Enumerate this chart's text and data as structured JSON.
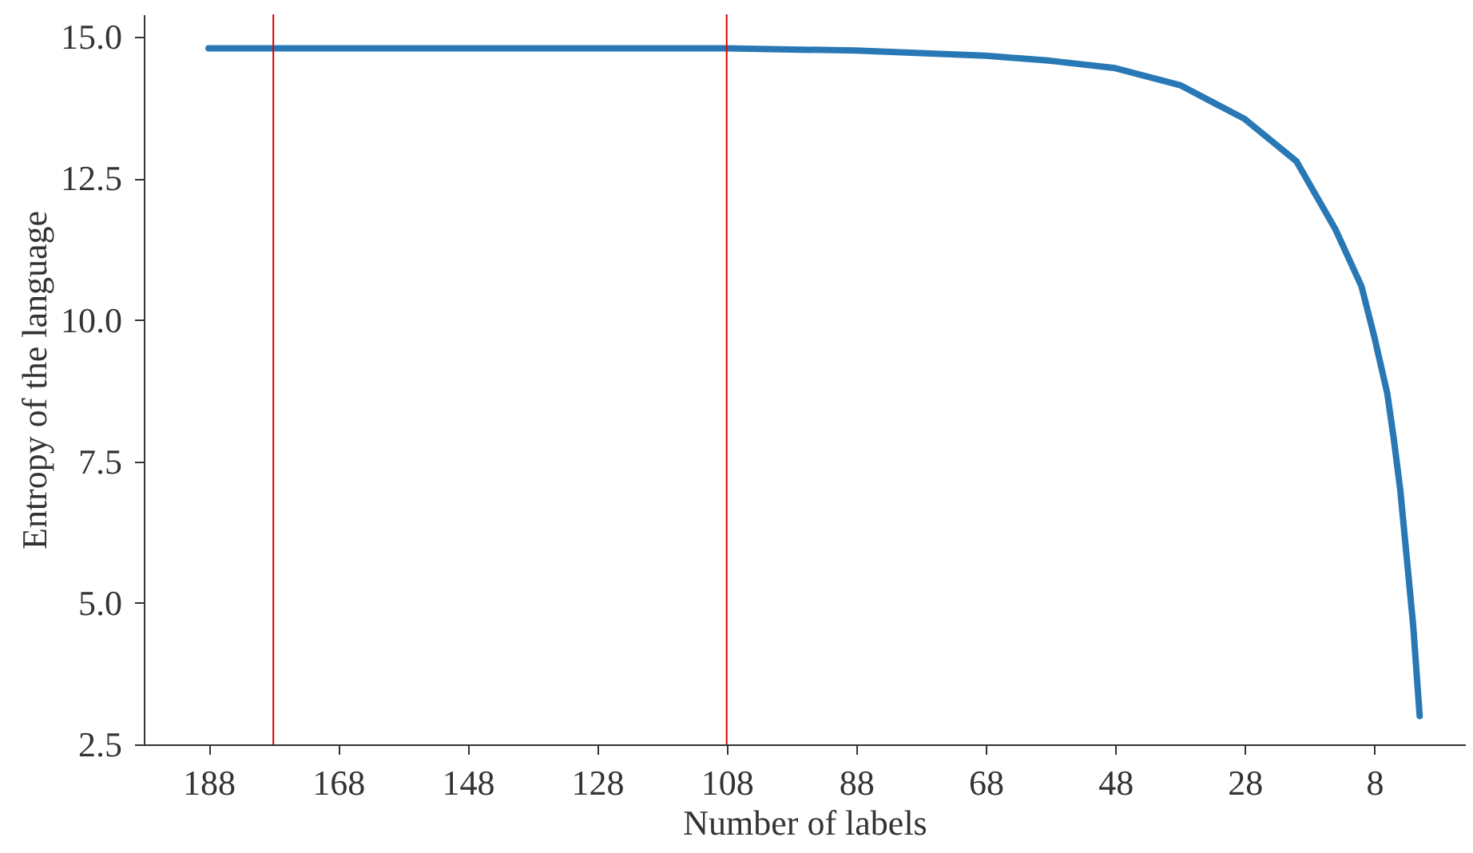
{
  "chart_data": {
    "type": "line",
    "xlabel": "Number of labels",
    "ylabel": "Entropy of the language",
    "x": [
      188,
      168,
      148,
      128,
      108,
      88,
      68,
      58,
      48,
      38,
      28,
      20,
      14,
      10,
      8,
      6,
      5,
      4,
      3,
      2,
      1
    ],
    "series": [
      {
        "color": "#2878b5",
        "values": [
          14.8,
          14.8,
          14.8,
          14.8,
          14.8,
          14.76,
          14.67,
          14.58,
          14.45,
          14.15,
          13.55,
          12.8,
          11.6,
          10.6,
          9.7,
          8.7,
          7.9,
          7.0,
          5.8,
          4.6,
          3.0
        ]
      }
    ],
    "xlim": [
      198,
      -6
    ],
    "xticks": [
      188,
      168,
      148,
      128,
      108,
      88,
      68,
      48,
      28,
      8
    ],
    "ylim": [
      2.5,
      15.4
    ],
    "yticks": [
      2.5,
      {
        "value": 5,
        "label": "5.0"
      },
      7.5,
      {
        "value": 10,
        "label": "10.0"
      },
      12.5,
      {
        "value": 15,
        "label": "15.0"
      }
    ],
    "ref_lines": [
      {
        "axis": "x",
        "value": 178,
        "color": "#e00000"
      },
      {
        "axis": "x",
        "value": 108,
        "color": "#e00000"
      }
    ],
    "grid": false,
    "marker": "none",
    "line_style": "solid"
  }
}
